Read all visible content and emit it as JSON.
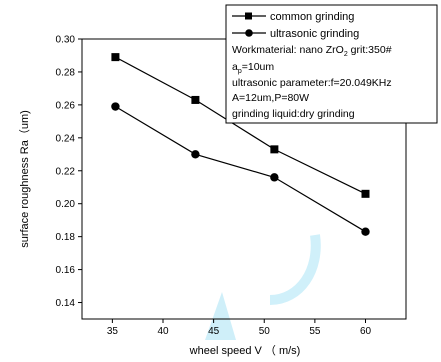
{
  "chart_data": {
    "type": "line",
    "x": [
      35.3,
      43.2,
      51.0,
      60.0
    ],
    "series": [
      {
        "name": "common grinding",
        "marker": "square",
        "values": [
          0.289,
          0.263,
          0.233,
          0.206
        ]
      },
      {
        "name": "ultrasonic grinding",
        "marker": "circle",
        "values": [
          0.259,
          0.23,
          0.216,
          0.183
        ]
      }
    ],
    "xlabel": "wheel speed V （ m/s)",
    "ylabel": "surface roughness Ra（um)",
    "xlim": [
      32,
      64
    ],
    "ylim": [
      0.13,
      0.3
    ],
    "xticks": [
      "35",
      "40",
      "45",
      "50",
      "55",
      "60"
    ],
    "yticks": [
      "0.14",
      "0.16",
      "0.18",
      "0.20",
      "0.22",
      "0.24",
      "0.26",
      "0.28",
      "0.30"
    ],
    "grid": false,
    "legend_position": "top-right",
    "annotations": {
      "line1_prefix": "Workmaterial:  nano ZrO",
      "line1_sub": "2",
      "line1_suffix": "  grit:350#",
      "line2_main": "a",
      "line2_sub": "p",
      "line2_suffix": "=10um",
      "line3": "ultrasonic parameter:f=20.049KHz",
      "line4": "A=12um,P=80W",
      "line5": "grinding liquid:dry grinding"
    },
    "colors": {
      "line": "#000000",
      "watermark": "#a9e3f5"
    }
  }
}
